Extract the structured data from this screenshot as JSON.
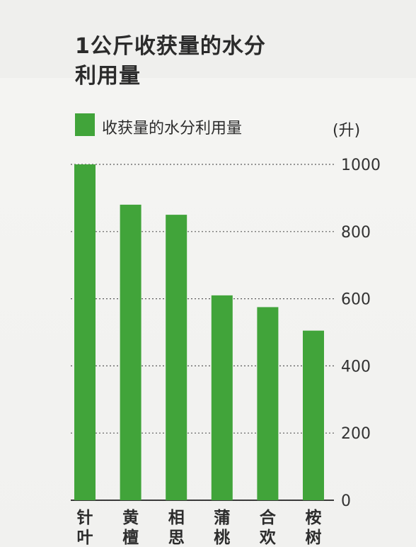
{
  "title_lines": [
    "1公斤收获量的水分",
    "利用量"
  ],
  "legend": {
    "label": "收获量的水分利用量",
    "color": "#41a43a"
  },
  "unit": "(升)",
  "chart_data": {
    "type": "bar",
    "title": "1公斤收获量的水分利用量",
    "ylabel": "(升)",
    "categories": [
      [
        "针",
        "叶"
      ],
      [
        "黄",
        "檀"
      ],
      [
        "相",
        "思"
      ],
      [
        "蒲",
        "桃"
      ],
      [
        "合",
        "欢"
      ],
      [
        "桉",
        "树"
      ]
    ],
    "series": [
      {
        "name": "收获量的水分利用量",
        "values": [
          1000,
          880,
          850,
          610,
          575,
          505
        ]
      }
    ],
    "ylim": [
      0,
      1000
    ],
    "yticks": [
      0,
      200,
      400,
      600,
      800,
      1000
    ],
    "grid": true,
    "legend_position": "top-left",
    "bar_color": "#41a43a"
  }
}
